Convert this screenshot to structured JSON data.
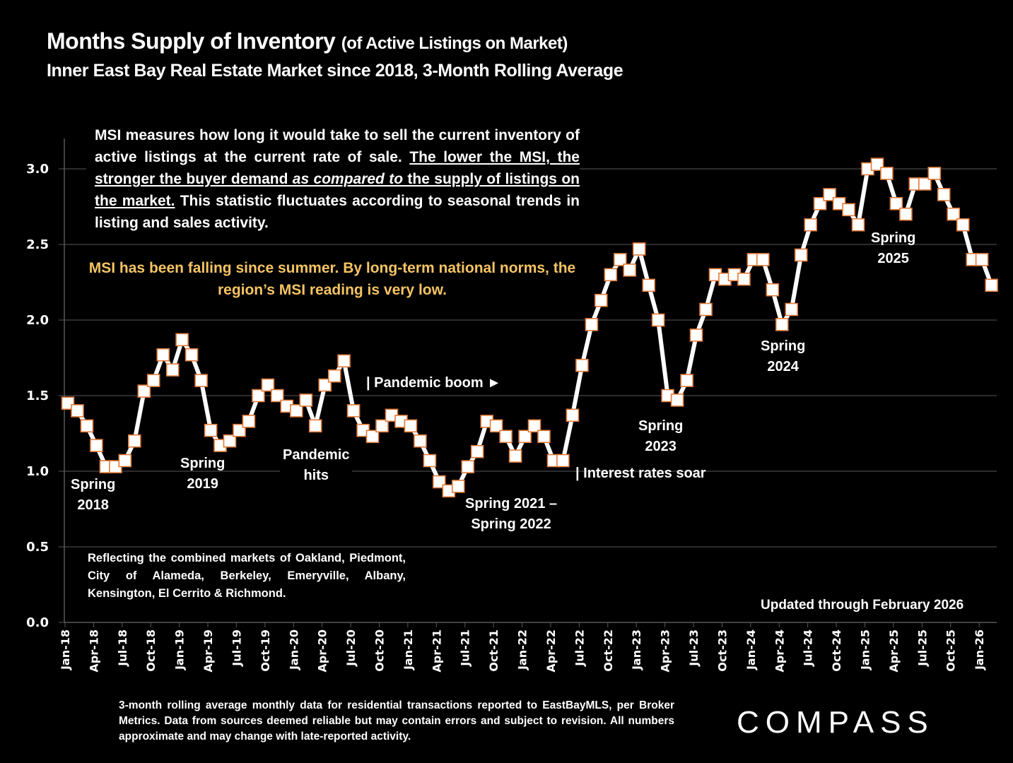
{
  "header": {
    "title_main": "Months Supply of Inventory",
    "title_paren": "(of Active Listings on Market)",
    "subtitle": "Inner East Bay Real Estate Market since 2018, 3-Month Rolling Average"
  },
  "description": {
    "part1": "MSI measures how long it would take to sell the current inventory of active listings at the current rate of sale. ",
    "underlined_a": "The lower the MSI, the stronger the buyer demand ",
    "underlined_italic": "as compared to",
    "underlined_b": " the supply of listings on the market.",
    "part2": " This statistic fluctuates according to seasonal trends in listing and sales activity."
  },
  "highlight": "MSI has been falling since summer. By long-term national norms, the region’s MSI reading is very low.",
  "markets_note": "Reflecting the combined markets of Oakland, Piedmont, City of Alameda, Berkeley, Emeryville, Albany, Kensington, El Cerrito & Richmond.",
  "annotations": {
    "spring2018": [
      "Spring",
      "2018"
    ],
    "spring2019": [
      "Spring",
      "2019"
    ],
    "pandemic_hits": [
      "Pandemic",
      "hits"
    ],
    "pandemic_boom": "| Pandemic boom ►",
    "spring2021_2022": [
      "Spring 2021 –",
      "Spring 2022"
    ],
    "interest_rates": "| Interest rates soar",
    "spring2023": [
      "Spring",
      "2023"
    ],
    "spring2024": [
      "Spring",
      "2024"
    ],
    "spring2025": [
      "Spring",
      "2025"
    ]
  },
  "updated": "Updated through February 2026",
  "footnote": "3-month rolling average monthly data for residential transactions reported to EastBayMLS, per Broker Metrics. Data from sources deemed reliable but may contain errors and subject to revision. All numbers approximate and may change with late-reported activity.",
  "logo": "COMPASS",
  "colors": {
    "background": "#000000",
    "line": "#ffffff",
    "marker_fill": "#ffffff",
    "marker_border": "#e07b39",
    "highlight_text": "#f5c463",
    "grid": "#595959"
  },
  "chart_data": {
    "type": "line",
    "title": "Months Supply of Inventory (of Active Listings on Market)",
    "subtitle": "Inner East Bay Real Estate Market since 2018, 3-Month Rolling Average",
    "xlabel": "",
    "ylabel": "",
    "ylim": [
      0,
      3.2
    ],
    "yticks": [
      "0.0",
      "0.5",
      "1.0",
      "1.5",
      "2.0",
      "2.5",
      "3.0"
    ],
    "ytick_values": [
      0,
      0.5,
      1.0,
      1.5,
      2.0,
      2.5,
      3.0
    ],
    "grid": true,
    "xtick_labels": [
      "Jan-18",
      "Apr-18",
      "Jul-18",
      "Oct-18",
      "Jan-19",
      "Apr-19",
      "Jul-19",
      "Oct-19",
      "Jan-20",
      "Apr-20",
      "Jul-20",
      "Oct-20",
      "Jan-21",
      "Apr-21",
      "Jul-21",
      "Oct-21",
      "Jan-22",
      "Apr-22",
      "Jul-22",
      "Oct-22",
      "Jan-23",
      "Apr-23",
      "Jul-23",
      "Oct-23",
      "Jan-24",
      "Apr-24",
      "Jul-24",
      "Oct-24",
      "Jan-25",
      "Apr-25",
      "Jul-25",
      "Oct-25",
      "Jan-26"
    ],
    "x": [
      "Jan-18",
      "Feb-18",
      "Mar-18",
      "Apr-18",
      "May-18",
      "Jun-18",
      "Jul-18",
      "Aug-18",
      "Sep-18",
      "Oct-18",
      "Nov-18",
      "Dec-18",
      "Jan-19",
      "Feb-19",
      "Mar-19",
      "Apr-19",
      "May-19",
      "Jun-19",
      "Jul-19",
      "Aug-19",
      "Sep-19",
      "Oct-19",
      "Nov-19",
      "Dec-19",
      "Jan-20",
      "Feb-20",
      "Mar-20",
      "Apr-20",
      "May-20",
      "Jun-20",
      "Jul-20",
      "Aug-20",
      "Sep-20",
      "Oct-20",
      "Nov-20",
      "Dec-20",
      "Jan-21",
      "Feb-21",
      "Mar-21",
      "Apr-21",
      "May-21",
      "Jun-21",
      "Jul-21",
      "Aug-21",
      "Sep-21",
      "Oct-21",
      "Nov-21",
      "Dec-21",
      "Jan-22",
      "Feb-22",
      "Mar-22",
      "Apr-22",
      "May-22",
      "Jun-22",
      "Jul-22",
      "Aug-22",
      "Sep-22",
      "Oct-22",
      "Nov-22",
      "Dec-22",
      "Jan-23",
      "Feb-23",
      "Mar-23",
      "Apr-23",
      "May-23",
      "Jun-23",
      "Jul-23",
      "Aug-23",
      "Sep-23",
      "Oct-23",
      "Nov-23",
      "Dec-23",
      "Jan-24",
      "Feb-24",
      "Mar-24",
      "Apr-24",
      "May-24",
      "Jun-24",
      "Jul-24",
      "Aug-24",
      "Sep-24",
      "Oct-24",
      "Nov-24",
      "Dec-24",
      "Jan-25",
      "Feb-25",
      "Mar-25",
      "Apr-25",
      "May-25",
      "Jun-25",
      "Jul-25",
      "Aug-25",
      "Sep-25",
      "Oct-25",
      "Nov-25",
      "Dec-25",
      "Jan-26",
      "Feb-26"
    ],
    "series": [
      {
        "name": "MSI (3-month rolling average)",
        "values": [
          1.45,
          1.4,
          1.3,
          1.17,
          1.03,
          1.03,
          1.07,
          1.2,
          1.53,
          1.6,
          1.77,
          1.67,
          1.87,
          1.77,
          1.6,
          1.27,
          1.17,
          1.2,
          1.27,
          1.33,
          1.5,
          1.57,
          1.5,
          1.43,
          1.4,
          1.47,
          1.3,
          1.57,
          1.63,
          1.73,
          1.4,
          1.27,
          1.23,
          1.3,
          1.37,
          1.33,
          1.3,
          1.2,
          1.07,
          0.93,
          0.87,
          0.9,
          1.03,
          1.13,
          1.33,
          1.3,
          1.23,
          1.1,
          1.23,
          1.3,
          1.23,
          1.07,
          1.07,
          1.37,
          1.7,
          1.97,
          2.13,
          2.3,
          2.4,
          2.33,
          2.47,
          2.23,
          2.0,
          1.5,
          1.47,
          1.6,
          1.9,
          2.07,
          2.3,
          2.27,
          2.3,
          2.27,
          2.4,
          2.4,
          2.2,
          1.97,
          2.07,
          2.43,
          2.63,
          2.77,
          2.83,
          2.77,
          2.73,
          2.63,
          3.0,
          3.03,
          2.97,
          2.77,
          2.7,
          2.9,
          2.9,
          2.97,
          2.83,
          2.7,
          2.63,
          2.4,
          2.4,
          2.23
        ]
      }
    ]
  }
}
